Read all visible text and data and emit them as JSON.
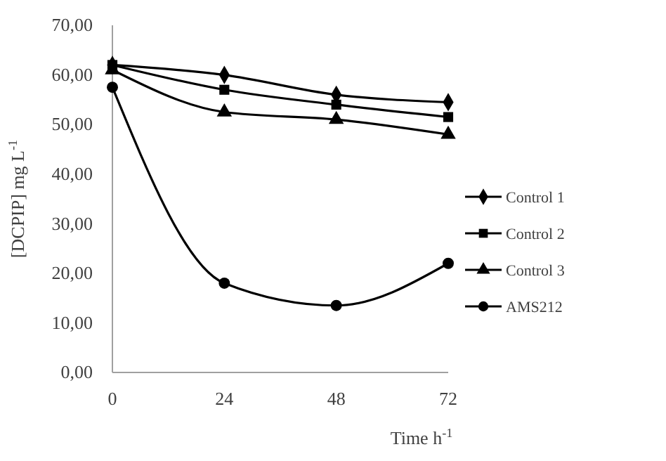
{
  "chart_data": {
    "type": "line",
    "xlabel": "Time h$^{-1}$",
    "ylabel": "[DCPIP] mg L$^{-1}$",
    "x": [
      0,
      24,
      48,
      72
    ],
    "xlim": [
      0,
      72
    ],
    "xticks": [
      0,
      24,
      48,
      72
    ],
    "ylim": [
      0,
      70
    ],
    "yticks": [
      {
        "value": 0,
        "label": "0,00"
      },
      {
        "value": 10,
        "label": "10,00"
      },
      {
        "value": 20,
        "label": "20,00"
      },
      {
        "value": 30,
        "label": "30,00"
      },
      {
        "value": 40,
        "label": "40,00"
      },
      {
        "value": 50,
        "label": "50,00"
      },
      {
        "value": 60,
        "label": "60,00"
      },
      {
        "value": 70,
        "label": "70,00"
      }
    ],
    "legend": "right",
    "grid": false,
    "series": [
      {
        "name": "Control 1",
        "color": "#000000",
        "marker": "diamond",
        "values": [
          62,
          60,
          56,
          54.5
        ]
      },
      {
        "name": "Control 2",
        "color": "#000000",
        "marker": "square",
        "values": [
          62,
          57,
          54,
          51.5
        ]
      },
      {
        "name": "Control 3",
        "color": "#000000",
        "marker": "triangle",
        "values": [
          61,
          52.5,
          51,
          48
        ]
      },
      {
        "name": "AMS212",
        "color": "#000000",
        "marker": "circle",
        "values": [
          57.5,
          18,
          13.5,
          22
        ]
      }
    ]
  }
}
